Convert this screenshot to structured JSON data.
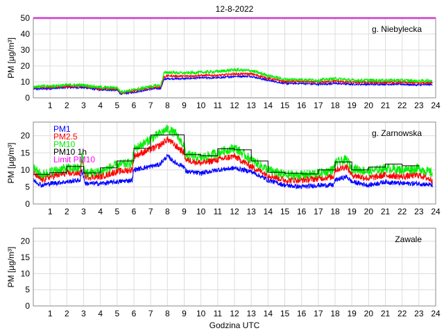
{
  "chart_data": {
    "type": "line",
    "title": "12-8-2022",
    "xlabel": "Godzina UTC",
    "xlim": [
      0,
      24
    ],
    "xticks": [
      1,
      2,
      3,
      4,
      5,
      6,
      7,
      8,
      9,
      10,
      11,
      12,
      13,
      14,
      15,
      16,
      17,
      18,
      19,
      20,
      21,
      22,
      23,
      24
    ],
    "legend": {
      "placement": "top-left",
      "panel": 1,
      "entries": [
        {
          "label": "PM1",
          "color": "#0000ff"
        },
        {
          "label": "PM2.5",
          "color": "#ff0000"
        },
        {
          "label": "PM10",
          "color": "#00ee00"
        },
        {
          "label": "PM10 1h",
          "color": "#000000"
        },
        {
          "label": "Limit PM10",
          "color": "#ff00ff"
        }
      ]
    },
    "panels": [
      {
        "station": "g. Niebylecka",
        "ylabel": "PM [µg/m³]",
        "ylim": [
          0,
          50
        ],
        "yticks": [
          0,
          10,
          20,
          30,
          40,
          50
        ],
        "limit_pm10": 50,
        "series": [
          {
            "name": "PM1",
            "color": "#0000ff",
            "noise": 0.6,
            "points": [
              [
                0,
                5.5
              ],
              [
                1,
                5.8
              ],
              [
                2,
                6.5
              ],
              [
                3,
                6.5
              ],
              [
                4,
                5
              ],
              [
                5,
                4.8
              ],
              [
                5.2,
                2.5
              ],
              [
                6,
                3.5
              ],
              [
                7,
                5.5
              ],
              [
                7.6,
                6
              ],
              [
                7.8,
                11.5
              ],
              [
                8,
                12
              ],
              [
                9,
                12
              ],
              [
                10,
                12.5
              ],
              [
                11,
                12.5
              ],
              [
                12,
                13.5
              ],
              [
                13,
                13.5
              ],
              [
                14,
                11
              ],
              [
                15,
                9
              ],
              [
                16,
                9
              ],
              [
                17,
                8.5
              ],
              [
                18,
                9
              ],
              [
                19,
                8.5
              ],
              [
                20,
                8.5
              ],
              [
                21,
                8.5
              ],
              [
                22,
                8.5
              ],
              [
                23,
                8
              ],
              [
                23.8,
                8.5
              ]
            ]
          },
          {
            "name": "PM2.5",
            "color": "#ff0000",
            "noise": 0.7,
            "points": [
              [
                0,
                6.3
              ],
              [
                1,
                6.6
              ],
              [
                2,
                7.3
              ],
              [
                3,
                7.3
              ],
              [
                4,
                5.8
              ],
              [
                5,
                5.6
              ],
              [
                5.2,
                3.2
              ],
              [
                6,
                4.3
              ],
              [
                7,
                6.3
              ],
              [
                7.6,
                6.8
              ],
              [
                7.8,
                13
              ],
              [
                8,
                13.8
              ],
              [
                9,
                13.5
              ],
              [
                10,
                14
              ],
              [
                11,
                14
              ],
              [
                12,
                15
              ],
              [
                13,
                15
              ],
              [
                14,
                12.3
              ],
              [
                15,
                10.2
              ],
              [
                16,
                10.2
              ],
              [
                17,
                9.7
              ],
              [
                18,
                10.4
              ],
              [
                19,
                9.7
              ],
              [
                20,
                9.7
              ],
              [
                21,
                9.7
              ],
              [
                22,
                9.7
              ],
              [
                23,
                9.2
              ],
              [
                23.8,
                9.8
              ]
            ]
          },
          {
            "name": "PM10",
            "color": "#00ee00",
            "noise": 1.0,
            "points": [
              [
                0,
                7
              ],
              [
                1,
                7.3
              ],
              [
                2,
                8
              ],
              [
                3,
                8
              ],
              [
                4,
                6.5
              ],
              [
                5,
                6.3
              ],
              [
                5.2,
                3.8
              ],
              [
                6,
                5
              ],
              [
                7,
                7.2
              ],
              [
                7.6,
                7.8
              ],
              [
                7.8,
                15.5
              ],
              [
                8,
                16
              ],
              [
                9,
                15.5
              ],
              [
                10,
                16
              ],
              [
                11,
                16.5
              ],
              [
                12,
                17.5
              ],
              [
                13,
                17
              ],
              [
                14,
                14
              ],
              [
                15,
                11.5
              ],
              [
                16,
                11.5
              ],
              [
                17,
                11
              ],
              [
                18,
                12
              ],
              [
                19,
                11
              ],
              [
                20,
                11
              ],
              [
                21,
                11
              ],
              [
                22,
                11
              ],
              [
                23,
                10.5
              ],
              [
                23.8,
                11
              ]
            ]
          }
        ]
      },
      {
        "station": "g. Zarnowska",
        "ylabel": "PM [µg/m³]",
        "ylim": [
          0,
          24
        ],
        "yticks": [
          0,
          5,
          10,
          15,
          20
        ],
        "pm10_1h": [
          8.7,
          9.2,
          11,
          9.1,
          10.6,
          12.6,
          16.3,
          20.2,
          20.3,
          14.5,
          14.1,
          16.2,
          15.9,
          12.6,
          9.3,
          9.0,
          8.8,
          10.0,
          12.3,
          10.0,
          10.8,
          11.7,
          11.2
        ],
        "series": [
          {
            "name": "PM1",
            "color": "#0000ff",
            "noise": 0.7,
            "points": [
              [
                0,
                7
              ],
              [
                0.5,
                5.5
              ],
              [
                1,
                6
              ],
              [
                2,
                6.5
              ],
              [
                2.8,
                7
              ],
              [
                2.9,
                10
              ],
              [
                3.1,
                6
              ],
              [
                4,
                6
              ],
              [
                5,
                6.5
              ],
              [
                5.9,
                7
              ],
              [
                6,
                10
              ],
              [
                7,
                11
              ],
              [
                7.5,
                11.5
              ],
              [
                8,
                14
              ],
              [
                8.5,
                12
              ],
              [
                9,
                11
              ],
              [
                9.1,
                9.5
              ],
              [
                10,
                9
              ],
              [
                11,
                10
              ],
              [
                12,
                10.5
              ],
              [
                13,
                9.5
              ],
              [
                14,
                7
              ],
              [
                15,
                5.5
              ],
              [
                16,
                5
              ],
              [
                17,
                5.5
              ],
              [
                17.9,
                5.5
              ],
              [
                18,
                7
              ],
              [
                18.7,
                8
              ],
              [
                19,
                6.5
              ],
              [
                20,
                5.5
              ],
              [
                21,
                6.5
              ],
              [
                22,
                6
              ],
              [
                23,
                6
              ],
              [
                23.8,
                5.5
              ]
            ]
          },
          {
            "name": "PM2.5",
            "color": "#ff0000",
            "noise": 1.0,
            "points": [
              [
                0,
                9
              ],
              [
                0.5,
                7
              ],
              [
                1,
                8
              ],
              [
                2,
                9
              ],
              [
                2.8,
                9
              ],
              [
                2.9,
                13
              ],
              [
                3.1,
                8
              ],
              [
                4,
                8
              ],
              [
                5,
                9.5
              ],
              [
                5.9,
                10
              ],
              [
                6,
                14
              ],
              [
                7,
                16
              ],
              [
                7.5,
                17
              ],
              [
                8,
                19
              ],
              [
                8.5,
                17
              ],
              [
                9,
                15
              ],
              [
                9.1,
                13
              ],
              [
                10,
                12
              ],
              [
                11,
                13
              ],
              [
                12,
                14
              ],
              [
                13,
                11
              ],
              [
                14,
                8.5
              ],
              [
                15,
                7
              ],
              [
                16,
                7
              ],
              [
                17,
                7.5
              ],
              [
                17.9,
                8
              ],
              [
                18,
                10
              ],
              [
                18.7,
                11
              ],
              [
                19,
                8.5
              ],
              [
                20,
                7.5
              ],
              [
                21,
                8.5
              ],
              [
                22,
                8
              ],
              [
                23,
                8.5
              ],
              [
                23.8,
                7
              ]
            ]
          },
          {
            "name": "PM10",
            "color": "#00ee00",
            "noise": 1.4,
            "points": [
              [
                0,
                10.5
              ],
              [
                0.5,
                8.5
              ],
              [
                1,
                9.5
              ],
              [
                2,
                10.5
              ],
              [
                2.8,
                10.5
              ],
              [
                2.9,
                15
              ],
              [
                3.1,
                9
              ],
              [
                4,
                9.5
              ],
              [
                5,
                11.5
              ],
              [
                5.9,
                12
              ],
              [
                6,
                16
              ],
              [
                7,
                19
              ],
              [
                7.5,
                20.5
              ],
              [
                8,
                22
              ],
              [
                8.5,
                20.5
              ],
              [
                9,
                17
              ],
              [
                9.1,
                14.5
              ],
              [
                10,
                13.5
              ],
              [
                11,
                15
              ],
              [
                12,
                16.5
              ],
              [
                13,
                13
              ],
              [
                14,
                10
              ],
              [
                15,
                8.5
              ],
              [
                16,
                8.5
              ],
              [
                17,
                9
              ],
              [
                17.9,
                10
              ],
              [
                18,
                12
              ],
              [
                18.7,
                13
              ],
              [
                19,
                10.5
              ],
              [
                20,
                9.5
              ],
              [
                21,
                10.5
              ],
              [
                22,
                10
              ],
              [
                23,
                10.5
              ],
              [
                23.8,
                9
              ]
            ]
          }
        ]
      },
      {
        "station": "Zawale",
        "ylabel": "PM [µg/m³]",
        "ylim": [
          0,
          24
        ],
        "yticks": [
          0,
          5,
          10,
          15,
          20
        ],
        "series": []
      }
    ]
  }
}
